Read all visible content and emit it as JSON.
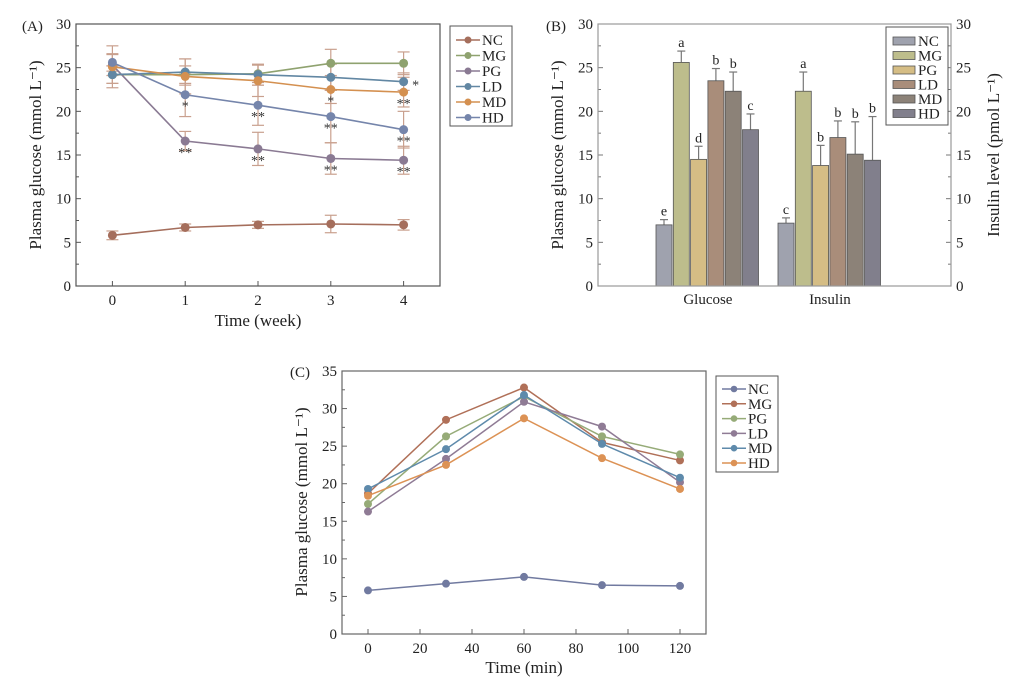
{
  "chart_data": [
    {
      "id": "A",
      "type": "line",
      "panel_label": "(A)",
      "title": "",
      "xlabel": "Time (week)",
      "ylabel": "Plasma glucose (mmol L⁻¹)",
      "xlim": [
        -0.5,
        4.5
      ],
      "ylim": [
        0,
        30
      ],
      "x": [
        0,
        1,
        2,
        3,
        4
      ],
      "x_ticks": [
        "0",
        "1",
        "2",
        "3",
        "4"
      ],
      "y_ticks": [
        "0",
        "5",
        "10",
        "15",
        "20",
        "25",
        "30"
      ],
      "grid": false,
      "legend_position": "outside-right-top",
      "error_bar_color": "#c9a08e",
      "series": [
        {
          "name": "NC",
          "color": "#a56e5c",
          "values": [
            5.8,
            6.7,
            7.0,
            7.1,
            7.0
          ],
          "errors": [
            0.5,
            0.4,
            0.4,
            1.0,
            0.6
          ],
          "marks": [
            "",
            "",
            "",
            "",
            ""
          ]
        },
        {
          "name": "MG",
          "color": "#8fa26f",
          "values": [
            24.2,
            24.2,
            24.3,
            25.5,
            25.5
          ],
          "errors": [
            1.0,
            1.0,
            1.0,
            1.6,
            1.3
          ],
          "marks": [
            "",
            "",
            "",
            "",
            ""
          ]
        },
        {
          "name": "PG",
          "color": "#8a7a93",
          "values": [
            25.3,
            16.6,
            15.7,
            14.6,
            14.4
          ],
          "errors": [
            1.2,
            1.1,
            1.9,
            1.8,
            1.6
          ],
          "marks": [
            "",
            "**",
            "**",
            "**",
            "**"
          ]
        },
        {
          "name": "LD",
          "color": "#6287a3",
          "values": [
            24.2,
            24.5,
            24.2,
            23.9,
            23.4
          ],
          "errors": [
            1.0,
            1.5,
            1.2,
            1.5,
            1.0
          ],
          "marks": [
            "",
            "",
            "",
            "",
            "*"
          ]
        },
        {
          "name": "MD",
          "color": "#d49050",
          "values": [
            25.1,
            24.0,
            23.5,
            22.5,
            22.2
          ],
          "errors": [
            2.4,
            2.0,
            1.8,
            1.6,
            1.7
          ],
          "marks": [
            "",
            "",
            "",
            "*",
            "**"
          ]
        },
        {
          "name": "HD",
          "color": "#7585ab",
          "values": [
            25.6,
            21.9,
            20.7,
            19.4,
            17.9
          ],
          "errors": [
            1.0,
            2.5,
            2.3,
            3.0,
            2.1
          ],
          "marks": [
            "",
            "*",
            "**",
            "**",
            "**"
          ]
        }
      ]
    },
    {
      "id": "B",
      "type": "bar",
      "panel_label": "(B)",
      "title": "",
      "xlabel": "",
      "ylabel": "Plasma glucose (mmol L⁻¹)",
      "ylabel_right": "Insulin level (pmol L⁻¹)",
      "ylim": [
        0,
        30
      ],
      "ylim_right": [
        0,
        30
      ],
      "y_ticks": [
        "0",
        "5",
        "10",
        "15",
        "20",
        "25",
        "30"
      ],
      "categories": [
        "Glucose",
        "Insulin"
      ],
      "grid": false,
      "legend_position": "top-right",
      "series": [
        {
          "name": "NC",
          "color": "#9fa2ae",
          "values": [
            7.0,
            7.2
          ],
          "errors": [
            0.6,
            0.6
          ],
          "letters": [
            "e",
            "c"
          ]
        },
        {
          "name": "MG",
          "color": "#bdbd8c",
          "values": [
            25.6,
            22.3
          ],
          "errors": [
            1.3,
            2.2
          ],
          "letters": [
            "a",
            "a"
          ]
        },
        {
          "name": "PG",
          "color": "#d5bd85",
          "values": [
            14.5,
            13.8
          ],
          "errors": [
            1.5,
            2.3
          ],
          "letters": [
            "d",
            "b"
          ]
        },
        {
          "name": "LD",
          "color": "#a98d7a",
          "values": [
            23.5,
            17.0
          ],
          "errors": [
            1.4,
            1.9
          ],
          "letters": [
            "b",
            "b"
          ]
        },
        {
          "name": "MD",
          "color": "#8c8278",
          "values": [
            22.3,
            15.1
          ],
          "errors": [
            2.2,
            3.7
          ],
          "letters": [
            "b",
            "b"
          ]
        },
        {
          "name": "HD",
          "color": "#817f8c",
          "values": [
            17.9,
            14.4
          ],
          "errors": [
            1.8,
            5.0
          ],
          "letters": [
            "c",
            "b"
          ]
        }
      ]
    },
    {
      "id": "C",
      "type": "line",
      "panel_label": "(C)",
      "title": "",
      "xlabel": "Time (min)",
      "ylabel": "Plasma glucose (mmol L⁻¹)",
      "xlim": [
        -10,
        130
      ],
      "ylim": [
        0,
        35
      ],
      "x": [
        0,
        30,
        60,
        90,
        120
      ],
      "x_ticks": [
        "0",
        "20",
        "40",
        "60",
        "80",
        "100",
        "120"
      ],
      "x_tick_values": [
        0,
        20,
        40,
        60,
        80,
        100,
        120
      ],
      "y_ticks": [
        "0",
        "5",
        "10",
        "15",
        "20",
        "25",
        "30",
        "35"
      ],
      "grid": false,
      "legend_position": "outside-right-top",
      "series": [
        {
          "name": "NC",
          "color": "#717aa0",
          "values": [
            5.8,
            6.7,
            7.6,
            6.5,
            6.4
          ]
        },
        {
          "name": "MG",
          "color": "#b07058",
          "values": [
            18.7,
            28.5,
            32.8,
            25.5,
            23.1
          ]
        },
        {
          "name": "PG",
          "color": "#96ab78",
          "values": [
            17.3,
            26.3,
            31.6,
            26.3,
            23.9
          ]
        },
        {
          "name": "LD",
          "color": "#8f7b95",
          "values": [
            16.3,
            23.3,
            30.9,
            27.6,
            20.2
          ]
        },
        {
          "name": "MD",
          "color": "#5e8aab",
          "values": [
            19.3,
            24.6,
            31.8,
            25.3,
            20.8
          ]
        },
        {
          "name": "HD",
          "color": "#dc9255",
          "values": [
            18.4,
            22.5,
            28.7,
            23.4,
            19.3
          ]
        }
      ]
    }
  ]
}
